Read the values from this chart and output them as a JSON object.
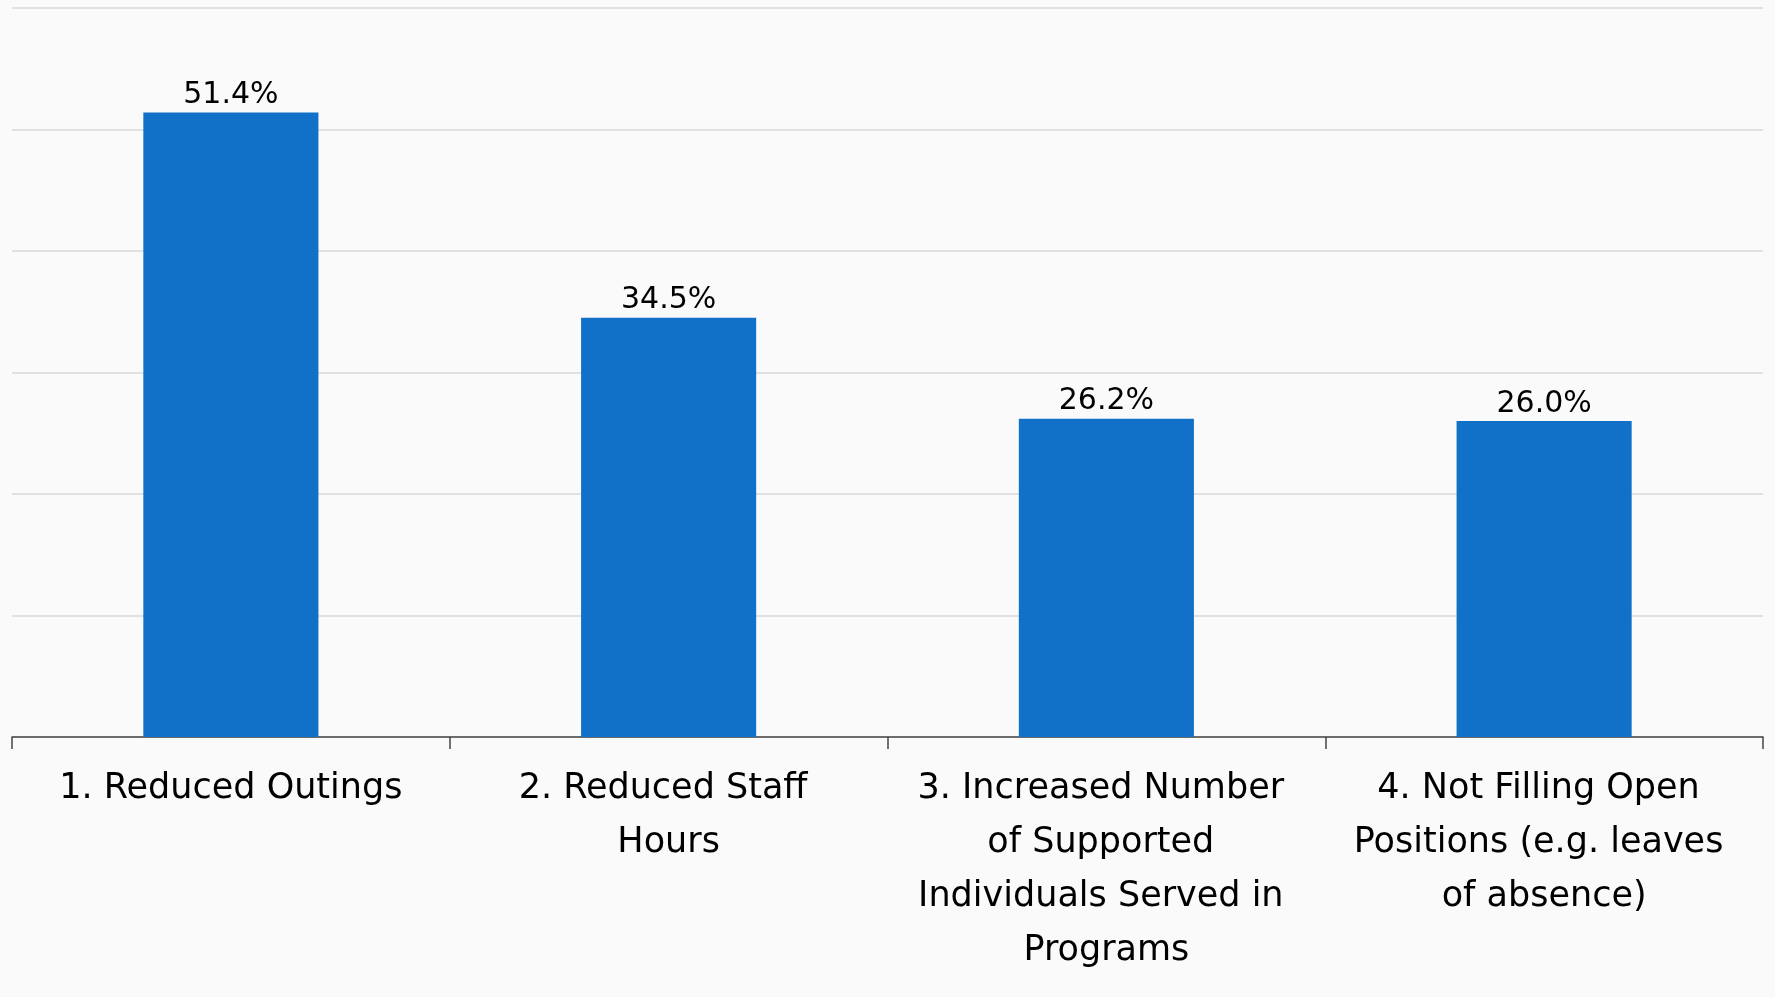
{
  "chart_data": {
    "type": "bar",
    "categories": [
      "1. Reduced Outings",
      "2. Reduced Staff Hours",
      "3. Increased Number of Supported Individuals Served in Programs",
      "4. Not Filling Open Positions (e.g. leaves of absence)"
    ],
    "values": [
      51.4,
      34.5,
      26.2,
      26.0
    ],
    "value_labels": [
      "51.4%",
      "34.5%",
      "26.2%",
      "26.0%"
    ],
    "color": "#1170c8",
    "ylim": [
      0,
      60
    ],
    "yticks": [
      {
        "value": 0,
        "label": null
      },
      {
        "value": 10,
        "label": null
      },
      {
        "value": 20,
        "label": null
      },
      {
        "value": 30,
        "label": null
      },
      {
        "value": 40,
        "label": null
      },
      {
        "value": 50,
        "label": null
      },
      {
        "value": 60,
        "label": null
      }
    ],
    "grid": "y",
    "tick_labels": "x"
  }
}
